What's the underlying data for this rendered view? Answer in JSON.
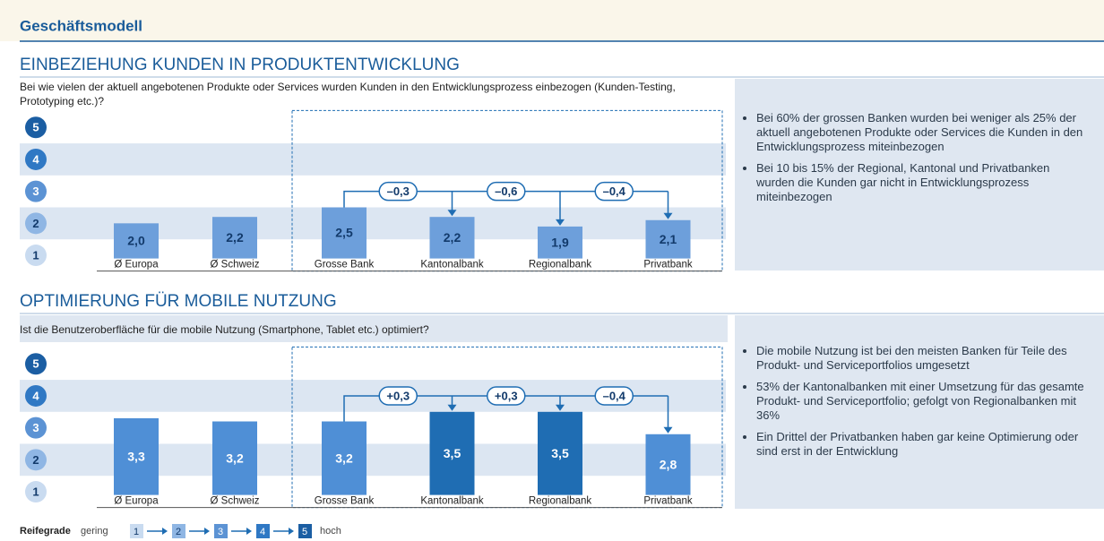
{
  "header": {
    "title": "Geschäftsmodell"
  },
  "chart_data": [
    {
      "type": "bar",
      "title": "EINBEZIEHUNG KUNDEN IN PRODUKTENTWICKLUNG",
      "subtitle": "Bei wie vielen der aktuell angebotenen Produkte oder Services wurden Kunden in den Entwicklungsprozess einbezogen (Kunden-Testing, Prototyping etc.)?",
      "categories": [
        "Ø Europa",
        "Ø Schweiz",
        "Grosse Bank",
        "Kantonalbank",
        "Regionalbank",
        "Privatbank"
      ],
      "values": [
        2.0,
        2.2,
        2.5,
        2.2,
        1.9,
        2.1
      ],
      "value_labels": [
        "2,0",
        "2,2",
        "2,5",
        "2,2",
        "1,9",
        "2,1"
      ],
      "colors": [
        "#6d9fdb",
        "#6d9fdb",
        "#6d9fdb",
        "#6d9fdb",
        "#6d9fdb",
        "#6d9fdb"
      ],
      "label_color": "#123a6b",
      "differences": [
        -0.3,
        -0.6,
        -0.4
      ],
      "difference_labels": [
        "–0,3",
        "–0,6",
        "–0,4"
      ],
      "ylim": [
        0.9,
        5.5
      ],
      "yticks": [
        1,
        2,
        3,
        4,
        5
      ],
      "bullets": [
        "Bei 60% der grossen Banken wurden bei weniger als 25% der aktuell angebotenen Produkte oder Services die Kunden in den Entwicklungsprozess miteinbezogen",
        "Bei 10 bis 15% der  Regional, Kantonal und Privatbanken wurden die Kunden gar nicht in Entwicklungsprozess miteinbezogen"
      ]
    },
    {
      "type": "bar",
      "title": "OPTIMIERUNG FÜR MOBILE NUTZUNG",
      "subtitle": "Ist die Benutzeroberfläche für die mobile Nutzung (Smartphone, Tablet etc.) optimiert?",
      "categories": [
        "Ø Europa",
        "Ø Schweiz",
        "Grosse Bank",
        "Kantonalbank",
        "Regionalbank",
        "Privatbank"
      ],
      "values": [
        3.3,
        3.2,
        3.2,
        3.5,
        3.5,
        2.8
      ],
      "value_labels": [
        "3,3",
        "3,2",
        "3,2",
        "3,5",
        "3,5",
        "2,8"
      ],
      "colors": [
        "#4f8fd6",
        "#4f8fd6",
        "#4f8fd6",
        "#1f6db3",
        "#1f6db3",
        "#4f8fd6"
      ],
      "label_color": "#ffffff",
      "differences": [
        0.3,
        0.3,
        -0.4
      ],
      "difference_labels": [
        "+0,3",
        "+0,3",
        "–0,4"
      ],
      "ylim": [
        0.9,
        5.5
      ],
      "yticks": [
        1,
        2,
        3,
        4,
        5
      ],
      "bullets": [
        "Die mobile Nutzung ist bei den meisten Banken für Teile des Produkt- und Serviceportfolios umgesetzt",
        "53% der Kantonalbanken mit einer Umsetzung für das gesamte Produkt- und Serviceportfolio; gefolgt von Regionalbanken mit 36%",
        "Ein Drittel der Privatbanken haben gar keine Optimierung oder sind erst in der Entwicklung"
      ]
    }
  ],
  "legend": {
    "title": "Reifegrade",
    "low": "gering",
    "levels": [
      1,
      2,
      3,
      4,
      5
    ],
    "high": "hoch",
    "colors": [
      "#c9dbf0",
      "#8fb6e4",
      "#5c93d4",
      "#2f78c4",
      "#1b5ea3"
    ]
  }
}
